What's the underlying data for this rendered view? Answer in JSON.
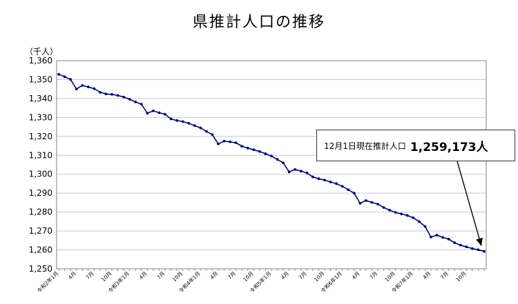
{
  "title": "県推計人口の推移",
  "unit_label": "（千人）",
  "annotation": {
    "label": "12月1日現在推計人口",
    "value": "1,259,173人"
  },
  "colors": {
    "line": "#00007f",
    "grid": "#c8c8c8",
    "axis": "#808080"
  },
  "chart_data": {
    "type": "line",
    "title": "県推計人口の推移",
    "ylabel": "（千人）",
    "ylim": [
      1250,
      1360
    ],
    "yticks": [
      1250,
      1260,
      1270,
      1280,
      1290,
      1300,
      1310,
      1320,
      1330,
      1340,
      1350,
      1360
    ],
    "ytick_labels": [
      "1,250",
      "1,260",
      "1,270",
      "1,280",
      "1,290",
      "1,300",
      "1,310",
      "1,320",
      "1,330",
      "1,340",
      "1,350",
      "1,360"
    ],
    "grid": "horizontal",
    "xtick_labels": [
      {
        "i": 0,
        "label": "令和2年1月"
      },
      {
        "i": 3,
        "label": "4月"
      },
      {
        "i": 6,
        "label": "7月"
      },
      {
        "i": 9,
        "label": "10月"
      },
      {
        "i": 12,
        "label": "令和3年1月"
      },
      {
        "i": 15,
        "label": "4月"
      },
      {
        "i": 18,
        "label": "7月"
      },
      {
        "i": 21,
        "label": "10月"
      },
      {
        "i": 24,
        "label": "令和4年1月"
      },
      {
        "i": 27,
        "label": "4月"
      },
      {
        "i": 30,
        "label": "7月"
      },
      {
        "i": 33,
        "label": "10月"
      },
      {
        "i": 36,
        "label": "令和5年1月"
      },
      {
        "i": 39,
        "label": "4月"
      },
      {
        "i": 42,
        "label": "7月"
      },
      {
        "i": 45,
        "label": "10月"
      },
      {
        "i": 48,
        "label": "令和6年1月"
      },
      {
        "i": 51,
        "label": "4月"
      },
      {
        "i": 54,
        "label": "7月"
      },
      {
        "i": 57,
        "label": "10月"
      },
      {
        "i": 60,
        "label": "令和7年1月"
      },
      {
        "i": 63,
        "label": "4月"
      },
      {
        "i": 66,
        "label": "7月"
      },
      {
        "i": 69,
        "label": "10月"
      }
    ],
    "values": [
      1352.8,
      1351.5,
      1350.1,
      1345.0,
      1346.9,
      1346.1,
      1345.2,
      1343.3,
      1342.4,
      1342.2,
      1341.6,
      1340.8,
      1339.6,
      1338.2,
      1337.0,
      1332.2,
      1333.5,
      1332.5,
      1331.7,
      1329.2,
      1328.4,
      1327.8,
      1326.9,
      1325.7,
      1324.5,
      1322.6,
      1320.9,
      1316.0,
      1317.5,
      1317.1,
      1316.6,
      1314.8,
      1313.8,
      1312.9,
      1312.0,
      1310.8,
      1309.6,
      1307.8,
      1306.0,
      1301.2,
      1302.5,
      1301.6,
      1300.7,
      1298.6,
      1297.6,
      1296.9,
      1295.9,
      1295.0,
      1293.6,
      1291.8,
      1290.0,
      1284.6,
      1286.1,
      1285.1,
      1284.2,
      1282.4,
      1281.0,
      1279.8,
      1279.0,
      1278.2,
      1277.0,
      1275.0,
      1272.4,
      1266.8,
      1267.8,
      1266.6,
      1265.7,
      1263.8,
      1262.5,
      1261.6,
      1260.7,
      1260.1,
      1259.2
    ]
  }
}
